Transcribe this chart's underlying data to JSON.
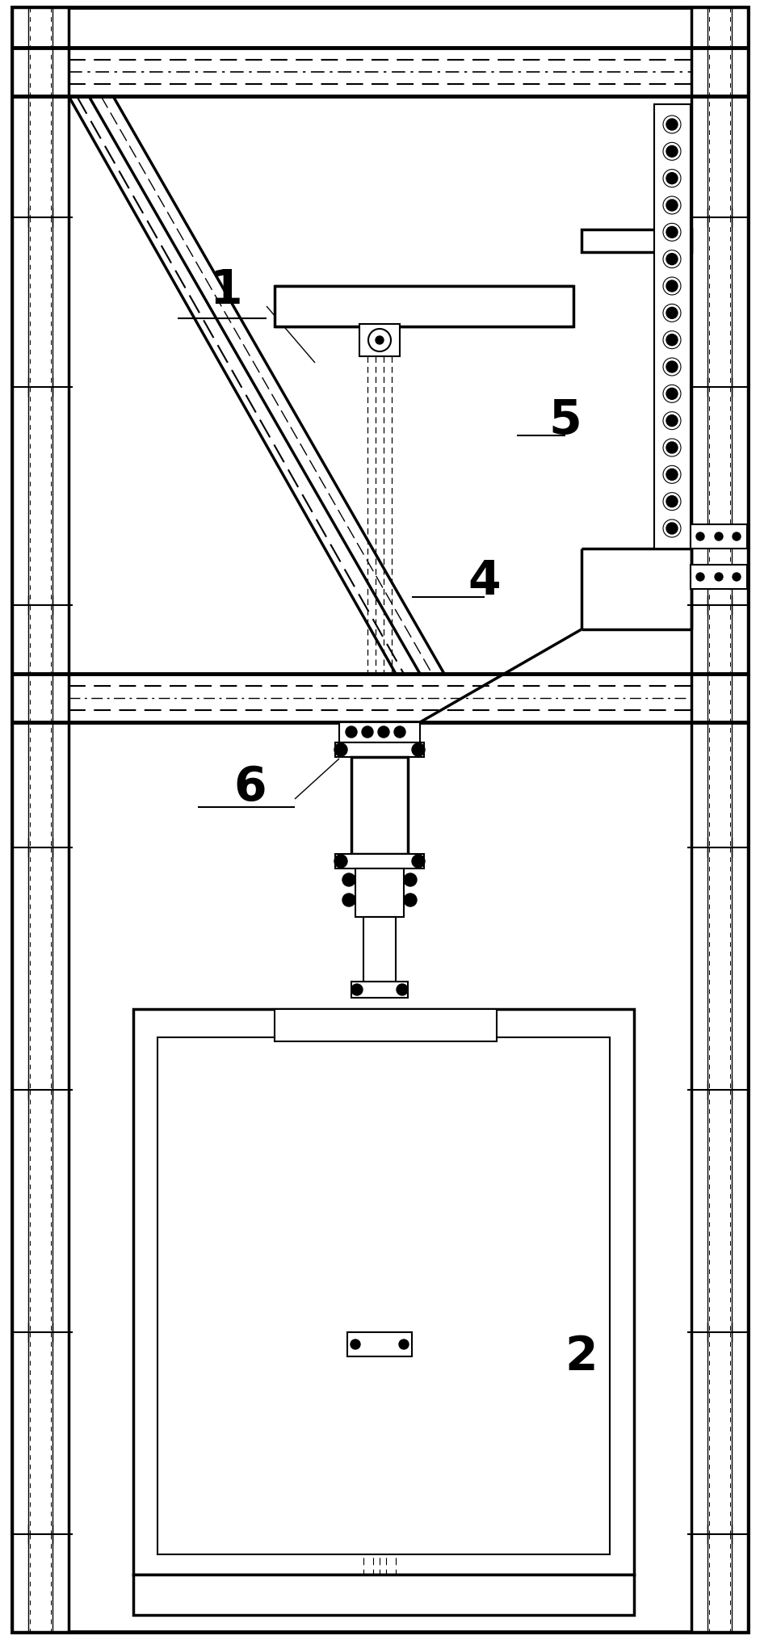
{
  "bg_color": "#ffffff",
  "line_color": "#000000",
  "fig_width": 9.41,
  "fig_height": 20.31,
  "dpi": 100
}
